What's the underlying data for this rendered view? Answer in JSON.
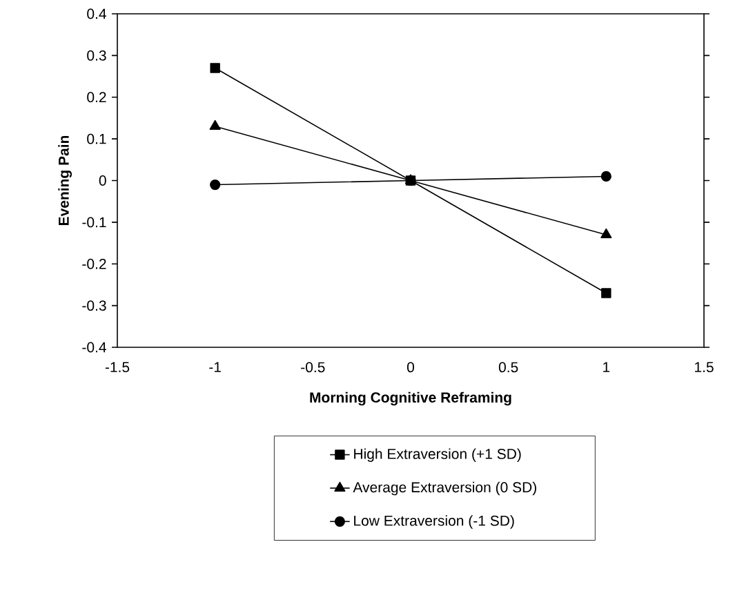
{
  "chart_data": {
    "type": "line",
    "xlabel": "Morning Cognitive Reframing",
    "ylabel": "Evening Pain",
    "x": [
      -1,
      0,
      1
    ],
    "series": [
      {
        "name": "High Extraversion (+1 SD)",
        "color": "#000000",
        "marker": "square",
        "values": [
          0.27,
          0,
          -0.27
        ]
      },
      {
        "name": "Average Extraversion (0 SD)",
        "color": "#000000",
        "marker": "triangle",
        "values": [
          0.13,
          0,
          -0.13
        ]
      },
      {
        "name": "Low Extraversion (-1 SD)",
        "color": "#000000",
        "marker": "circle",
        "values": [
          -0.01,
          0,
          0.01
        ]
      }
    ],
    "xlim": [
      -1.5,
      1.5
    ],
    "xticks": [
      -1.5,
      -1,
      -0.5,
      0,
      0.5,
      1,
      1.5
    ],
    "ylim": [
      -0.4,
      0.4
    ],
    "yticks": [
      -0.4,
      -0.3,
      -0.2,
      -0.1,
      0,
      0.1,
      0.2,
      0.3,
      0.4
    ],
    "grid": false,
    "legend": "bottom",
    "line_style": "solid"
  }
}
